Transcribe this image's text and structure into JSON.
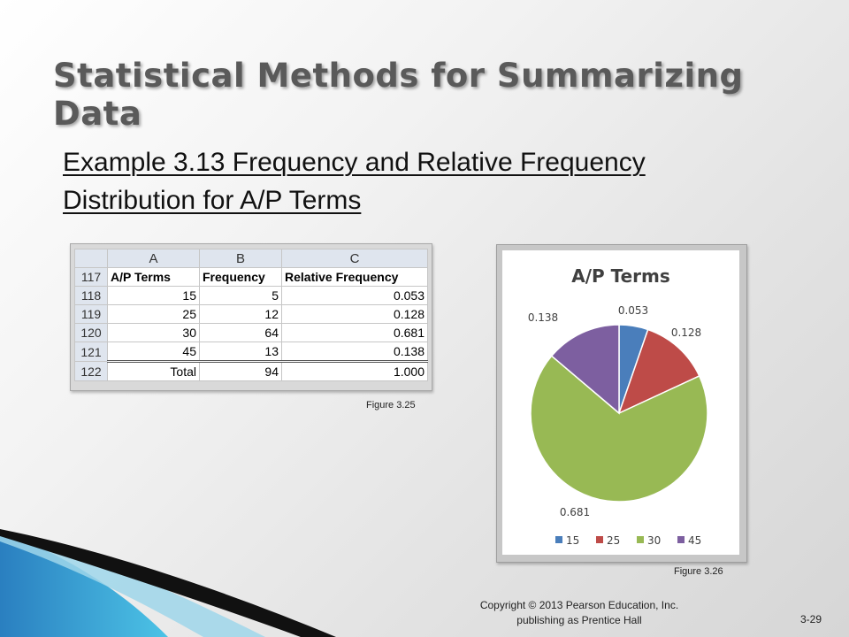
{
  "slide": {
    "title": "Statistical Methods for Summarizing Data",
    "example_line1": "Example 3.13  Frequency and Relative Frequency",
    "example_line2": "Distribution for A/P Terms",
    "copyright_line1": "Copyright © 2013 Pearson Education, Inc.",
    "copyright_line2": "publishing as Prentice Hall",
    "page_number": "3-29"
  },
  "table": {
    "column_letters": [
      "A",
      "B",
      "C"
    ],
    "header_row": {
      "row_num": "117",
      "a": "A/P Terms",
      "b": "Frequency",
      "c": "Relative Frequency"
    },
    "rows": [
      {
        "row_num": "118",
        "a": "15",
        "b": "5",
        "c": "0.053"
      },
      {
        "row_num": "119",
        "a": "25",
        "b": "12",
        "c": "0.128"
      },
      {
        "row_num": "120",
        "a": "30",
        "b": "64",
        "c": "0.681"
      },
      {
        "row_num": "121",
        "a": "45",
        "b": "13",
        "c": "0.138"
      }
    ],
    "total_row": {
      "row_num": "122",
      "a": "Total",
      "b": "94",
      "c": "1.000"
    },
    "caption": "Figure 3.25"
  },
  "chart_caption": "Figure 3.26",
  "chart_data": {
    "type": "pie",
    "title": "A/P Terms",
    "categories": [
      "15",
      "25",
      "30",
      "45"
    ],
    "values": [
      0.053,
      0.128,
      0.681,
      0.138
    ],
    "data_labels": [
      "0.053",
      "0.128",
      "0.681",
      "0.138"
    ],
    "colors": [
      "#4a7ebb",
      "#be4b48",
      "#98b954",
      "#7d5fa0"
    ],
    "legend_position": "bottom"
  }
}
